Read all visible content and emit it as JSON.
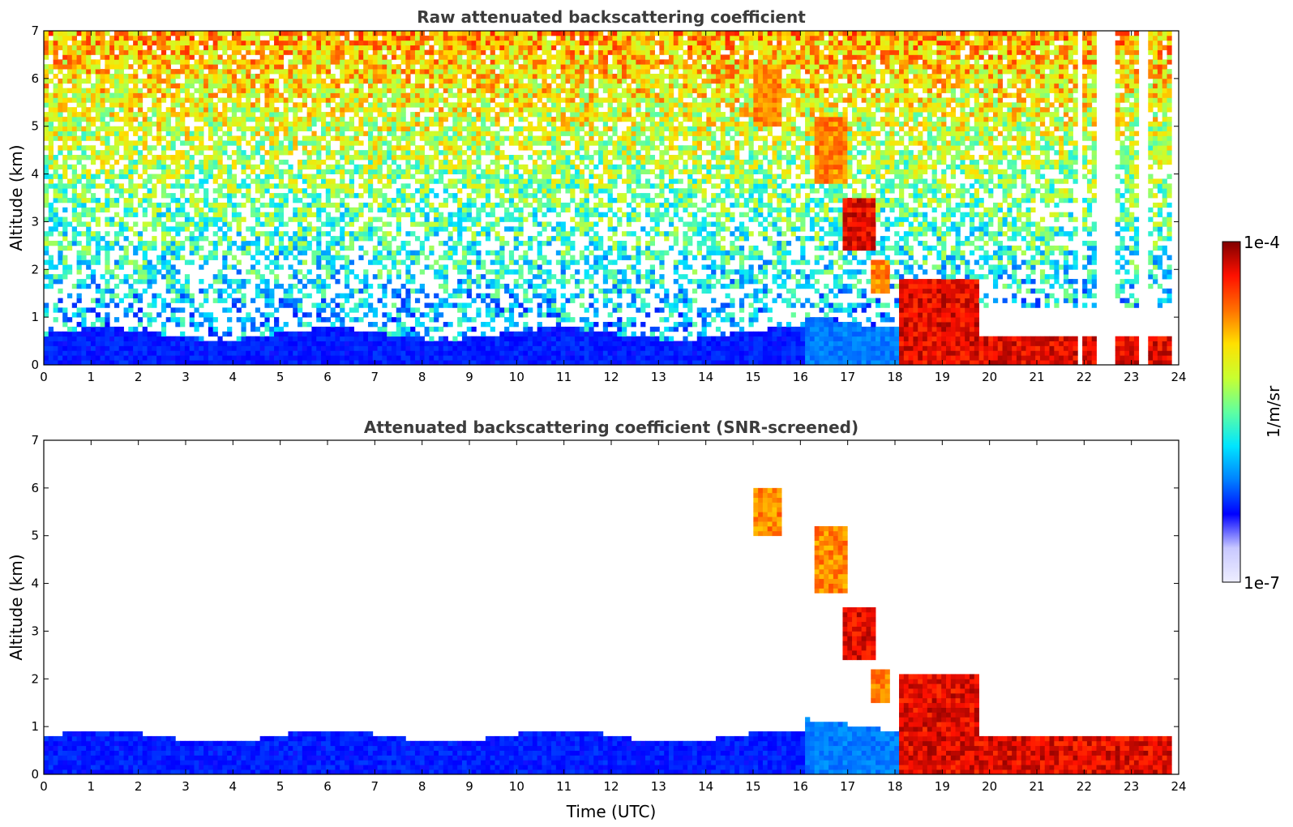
{
  "colors": {
    "background": "#ffffff",
    "title_text": "#3c3c3c",
    "axes": "#000000",
    "colormap_jet": [
      "#eeeeff",
      "#c8c8ff",
      "#0000ff",
      "#0080ff",
      "#00e5ff",
      "#60ffa0",
      "#c8ff30",
      "#ffe000",
      "#ff7000",
      "#ff1000",
      "#800000"
    ]
  },
  "chart_data": [
    {
      "type": "heatmap",
      "title": "Raw attenuated backscattering coefficient",
      "xlabel": "",
      "ylabel": "Altitude (km)",
      "xlim": [
        0,
        24
      ],
      "ylim": [
        0,
        7
      ],
      "x_ticks": [
        "0",
        "1",
        "2",
        "3",
        "4",
        "5",
        "6",
        "7",
        "8",
        "9",
        "10",
        "11",
        "12",
        "13",
        "14",
        "15",
        "16",
        "17",
        "18",
        "19",
        "20",
        "21",
        "22",
        "23",
        "24"
      ],
      "y_ticks": [
        "0",
        "1",
        "2",
        "3",
        "4",
        "5",
        "6",
        "7"
      ],
      "data_end_time": 23.85,
      "colorscale": "jet",
      "log_scale_values": true,
      "screened": false,
      "features": {
        "boundary_layer_top_km": 0.6,
        "noise_level_increasing_with_altitude": true,
        "cloud_layers": [
          {
            "time_start": 15.0,
            "time_end": 15.6,
            "alt_bottom_km": 5.0,
            "alt_top_km": 6.3,
            "intensity": "high"
          },
          {
            "time_start": 16.2,
            "time_end": 16.9,
            "alt_bottom_km": 3.8,
            "alt_top_km": 5.2,
            "intensity": "high"
          },
          {
            "time_start": 16.8,
            "time_end": 17.5,
            "alt_bottom_km": 2.4,
            "alt_top_km": 3.5,
            "intensity": "very high"
          },
          {
            "time_start": 17.4,
            "time_end": 17.8,
            "alt_bottom_km": 1.5,
            "alt_top_km": 2.2,
            "intensity": "high"
          },
          {
            "time_start": 18.0,
            "time_end": 19.7,
            "alt_bottom_km": 0.0,
            "alt_top_km": 1.8,
            "intensity": "very high"
          },
          {
            "time_start": 19.7,
            "time_end": 23.85,
            "alt_bottom_km": 0.0,
            "alt_top_km": 0.55,
            "intensity": "very high"
          }
        ],
        "missing_profiles_utc": [
          21.85,
          21.9,
          22.25,
          22.3,
          22.45,
          22.5,
          23.15,
          23.2
        ]
      }
    },
    {
      "type": "heatmap",
      "title": "Attenuated backscattering coefficient (SNR-screened)",
      "xlabel": "Time (UTC)",
      "ylabel": "Altitude (km)",
      "xlim": [
        0,
        24
      ],
      "ylim": [
        0,
        7
      ],
      "x_ticks": [
        "0",
        "1",
        "2",
        "3",
        "4",
        "5",
        "6",
        "7",
        "8",
        "9",
        "10",
        "11",
        "12",
        "13",
        "14",
        "15",
        "16",
        "17",
        "18",
        "19",
        "20",
        "21",
        "22",
        "23",
        "24"
      ],
      "y_ticks": [
        "0",
        "1",
        "2",
        "3",
        "4",
        "5",
        "6",
        "7"
      ],
      "data_end_time": 23.85,
      "colorscale": "jet",
      "log_scale_values": true,
      "screened": true,
      "features": {
        "boundary_layer_top_km": 0.75,
        "cloud_layers": [
          {
            "time_start": 15.0,
            "time_end": 15.6,
            "alt_bottom_km": 5.0,
            "alt_top_km": 6.0,
            "intensity": "high"
          },
          {
            "time_start": 16.2,
            "time_end": 16.9,
            "alt_bottom_km": 3.8,
            "alt_top_km": 5.2,
            "intensity": "high"
          },
          {
            "time_start": 16.8,
            "time_end": 17.5,
            "alt_bottom_km": 2.4,
            "alt_top_km": 3.5,
            "intensity": "very high"
          },
          {
            "time_start": 17.4,
            "time_end": 17.8,
            "alt_bottom_km": 1.5,
            "alt_top_km": 2.2,
            "intensity": "high"
          },
          {
            "time_start": 18.0,
            "time_end": 19.7,
            "alt_bottom_km": 0.0,
            "alt_top_km": 2.1,
            "intensity": "very high"
          },
          {
            "time_start": 19.7,
            "time_end": 23.85,
            "alt_bottom_km": 0.0,
            "alt_top_km": 0.8,
            "intensity": "very high"
          }
        ]
      }
    }
  ],
  "colorbar": {
    "label": "1/m/sr",
    "max_label": "1e-4",
    "min_label": "1e-7",
    "min_value": 1e-07,
    "max_value": 0.0001,
    "scale": "log"
  }
}
